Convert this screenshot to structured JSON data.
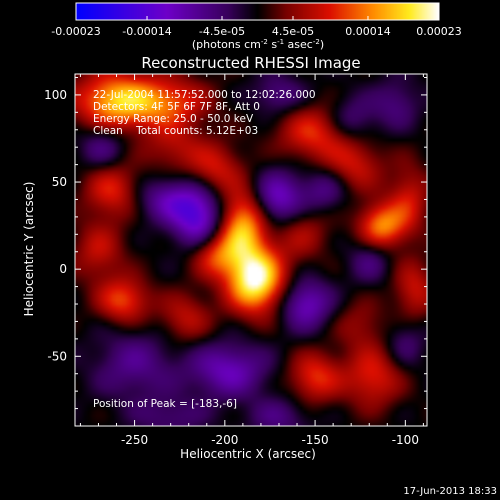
{
  "chart_data": {
    "type": "heatmap",
    "title": "Reconstructed RHESSI Image",
    "xlabel": "Heliocentric X (arcsec)",
    "ylabel": "Heliocentric Y (arcsec)",
    "xlim": [
      -283,
      -88
    ],
    "ylim": [
      -90,
      112
    ],
    "x_ticks": [
      -250,
      -200,
      -150,
      -100
    ],
    "y_ticks": [
      -50,
      0,
      50,
      100
    ],
    "colorbar": {
      "ticks": [
        "-0.00023",
        "-0.00014",
        "-4.5e-05",
        "4.5e-05",
        "0.00014",
        "0.00023"
      ],
      "tick_values": [
        -0.00023,
        -0.00014,
        -4.5e-05,
        4.5e-05,
        0.00014,
        0.00023
      ],
      "range": [
        -0.00023,
        0.00023
      ],
      "unit_text": "(photons cm",
      "unit_sup1": "-2",
      "unit_mid": " s",
      "unit_sup2": "-1",
      "unit_mid2": " asec",
      "unit_sup3": "-2",
      "unit_end": ")"
    },
    "annotations": [
      "22-Jul-2004 11:57:52.000 to 12:02:26.000",
      "Detectors: 4F 5F 6F 7F 8F, Att 0",
      "Energy Range: 25.0 - 50.0 keV",
      "Clean    Total counts: 5.12E+03"
    ],
    "peak_label": "Position of Peak = [-183,-6]",
    "peak": [
      -183,
      -6
    ],
    "blobs": [
      {
        "x": -183,
        "y": -6,
        "v": 1.0,
        "sx": 11,
        "sy": 13
      },
      {
        "x": -190,
        "y": 25,
        "v": 0.72,
        "sx": 9,
        "sy": 14
      },
      {
        "x": -205,
        "y": 8,
        "v": 0.45,
        "sx": 9,
        "sy": 9
      },
      {
        "x": -262,
        "y": 98,
        "v": 0.45,
        "sx": 14,
        "sy": 12
      },
      {
        "x": -232,
        "y": 96,
        "v": 0.42,
        "sx": 16,
        "sy": 10
      },
      {
        "x": -228,
        "y": 70,
        "v": 0.28,
        "sx": 12,
        "sy": 10
      },
      {
        "x": -262,
        "y": 45,
        "v": 0.42,
        "sx": 11,
        "sy": 11
      },
      {
        "x": -270,
        "y": 10,
        "v": 0.32,
        "sx": 10,
        "sy": 12
      },
      {
        "x": -256,
        "y": -18,
        "v": 0.5,
        "sx": 10,
        "sy": 9
      },
      {
        "x": -222,
        "y": -28,
        "v": 0.32,
        "sx": 10,
        "sy": 10
      },
      {
        "x": -205,
        "y": 58,
        "v": 0.35,
        "sx": 10,
        "sy": 10
      },
      {
        "x": -158,
        "y": 22,
        "v": 0.28,
        "sx": 11,
        "sy": 12
      },
      {
        "x": -150,
        "y": 78,
        "v": 0.45,
        "sx": 14,
        "sy": 11
      },
      {
        "x": -128,
        "y": 60,
        "v": 0.35,
        "sx": 11,
        "sy": 11
      },
      {
        "x": -113,
        "y": 25,
        "v": 0.62,
        "sx": 9,
        "sy": 9
      },
      {
        "x": -98,
        "y": 40,
        "v": 0.35,
        "sx": 8,
        "sy": 14
      },
      {
        "x": -95,
        "y": -12,
        "v": 0.35,
        "sx": 8,
        "sy": 12
      },
      {
        "x": -150,
        "y": -62,
        "v": 0.45,
        "sx": 10,
        "sy": 10
      },
      {
        "x": -118,
        "y": -62,
        "v": 0.42,
        "sx": 11,
        "sy": 12
      },
      {
        "x": -125,
        "y": -32,
        "v": 0.22,
        "sx": 10,
        "sy": 10
      },
      {
        "x": -255,
        "y": 95,
        "v": 0.3,
        "sx": 20,
        "sy": 10
      },
      {
        "x": -155,
        "y": -20,
        "v": -0.48,
        "sx": 10,
        "sy": 10
      },
      {
        "x": -170,
        "y": 40,
        "v": -0.52,
        "sx": 10,
        "sy": 11
      },
      {
        "x": -215,
        "y": 28,
        "v": -0.55,
        "sx": 10,
        "sy": 11
      },
      {
        "x": -230,
        "y": 40,
        "v": -0.4,
        "sx": 14,
        "sy": 9
      },
      {
        "x": -198,
        "y": -58,
        "v": -0.45,
        "sx": 15,
        "sy": 11
      },
      {
        "x": -250,
        "y": -55,
        "v": -0.3,
        "sx": 16,
        "sy": 14
      },
      {
        "x": -268,
        "y": 70,
        "v": -0.28,
        "sx": 9,
        "sy": 9
      },
      {
        "x": -130,
        "y": 85,
        "v": -0.3,
        "sx": 10,
        "sy": 10
      },
      {
        "x": -170,
        "y": 100,
        "v": -0.28,
        "sx": 10,
        "sy": 8
      },
      {
        "x": -105,
        "y": 95,
        "v": -0.25,
        "sx": 9,
        "sy": 10
      },
      {
        "x": -120,
        "y": 5,
        "v": -0.25,
        "sx": 8,
        "sy": 9
      },
      {
        "x": -100,
        "y": -42,
        "v": -0.22,
        "sx": 8,
        "sy": 10
      },
      {
        "x": -170,
        "y": -85,
        "v": -0.25,
        "sx": 12,
        "sy": 8
      },
      {
        "x": -230,
        "y": -85,
        "v": -0.22,
        "sx": 14,
        "sy": 8
      },
      {
        "x": -145,
        "y": 45,
        "v": -0.3,
        "sx": 9,
        "sy": 9
      }
    ]
  },
  "footer": {
    "date": "17-Jun-2013 18:33"
  },
  "colors": {
    "background": "#000000",
    "text": "#ffffff",
    "colormap": "blue-purple-red-yellow-white"
  }
}
